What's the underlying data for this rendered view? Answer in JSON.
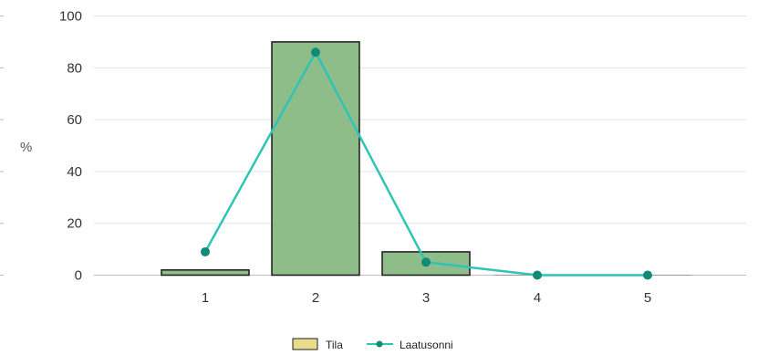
{
  "chart_data": {
    "type": "bar",
    "categories": [
      "1",
      "2",
      "3",
      "4",
      "5"
    ],
    "ylabel": "%",
    "ylim": [
      0,
      100
    ],
    "yticks": [
      "0",
      "20",
      "40",
      "60",
      "80",
      "100"
    ],
    "grid": true,
    "legend_position": "bottom-center",
    "series": [
      {
        "name": "Tila",
        "kind": "bar",
        "values": [
          2,
          90,
          9,
          0,
          0
        ],
        "color": "#8fbd8a",
        "outline": "#1a1a1a",
        "legend_color": "#e7dc8c"
      },
      {
        "name": "Laatusonni",
        "kind": "line",
        "values": [
          9,
          86,
          5,
          0,
          0
        ],
        "color": "#2ec4b6",
        "marker_color": "#138a78"
      }
    ]
  }
}
